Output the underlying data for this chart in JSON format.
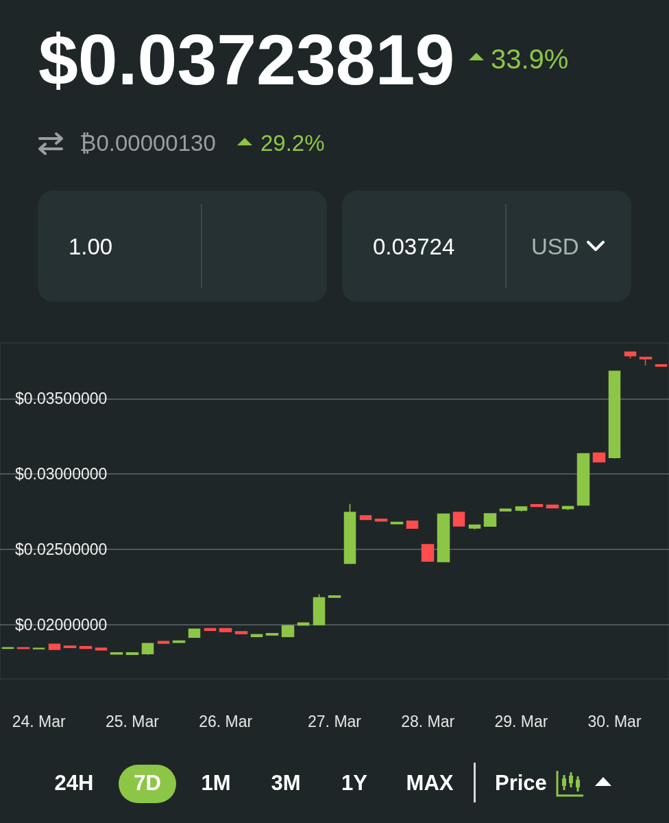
{
  "chart_data": {
    "type": "candlestick",
    "title": "$0.03723819",
    "annotations": [
      "33.9%",
      "₿0.00000130",
      "29.2%",
      "1.00",
      "0.03724",
      "USD",
      "24H",
      "7D",
      "1M",
      "3M",
      "1Y",
      "MAX",
      "Price"
    ],
    "categories": [
      null,
      null,
      "24. Mar",
      null,
      null,
      null,
      null,
      null,
      "25. Mar",
      null,
      null,
      null,
      null,
      null,
      "26. Mar",
      null,
      null,
      null,
      null,
      null,
      null,
      "27. Mar",
      null,
      null,
      null,
      null,
      null,
      "28. Mar",
      null,
      null,
      null,
      null,
      null,
      "29. Mar",
      null,
      null,
      null,
      null,
      null,
      "30. Mar",
      null,
      null,
      null
    ],
    "ohlc": [
      [
        0.01843,
        0.01848,
        0.01843,
        0.01848
      ],
      [
        0.01848,
        0.01848,
        0.01842,
        0.01842
      ],
      [
        0.0184,
        0.01844,
        0.0184,
        0.01844
      ],
      [
        0.01871,
        0.01871,
        0.01836,
        0.01836
      ],
      [
        0.01858,
        0.01858,
        0.01848,
        0.01848
      ],
      [
        0.01855,
        0.01855,
        0.01843,
        0.01843
      ],
      [
        0.01845,
        0.01845,
        0.01832,
        0.01832
      ],
      [
        0.01805,
        0.01814,
        0.01805,
        0.01814
      ],
      [
        0.01803,
        0.01814,
        0.01803,
        0.01814
      ],
      [
        0.01807,
        0.01876,
        0.018,
        0.01876
      ],
      [
        0.01889,
        0.01889,
        0.01877,
        0.01877
      ],
      [
        0.01882,
        0.01893,
        0.01882,
        0.01893
      ],
      [
        0.01916,
        0.01971,
        0.01916,
        0.01971
      ],
      [
        0.01974,
        0.01974,
        0.01962,
        0.01962
      ],
      [
        0.01974,
        0.01974,
        0.01954,
        0.01954
      ],
      [
        0.01954,
        0.01954,
        0.0194,
        0.0194
      ],
      [
        0.01921,
        0.01935,
        0.01921,
        0.01935
      ],
      [
        0.01931,
        0.01942,
        0.01931,
        0.01942
      ],
      [
        0.01921,
        0.01994,
        0.01921,
        0.01994
      ],
      [
        0.01997,
        0.02012,
        0.01997,
        0.02012
      ],
      [
        0.01999,
        0.02202,
        0.01999,
        0.02179
      ],
      [
        0.02182,
        0.02192,
        0.02182,
        0.02192
      ],
      [
        0.02407,
        0.02802,
        0.02407,
        0.02746
      ],
      [
        0.02723,
        0.02723,
        0.02698,
        0.02698
      ],
      [
        0.027,
        0.027,
        0.02688,
        0.02688
      ],
      [
        0.0267,
        0.0268,
        0.0267,
        0.0268
      ],
      [
        0.02688,
        0.02688,
        0.0264,
        0.0264
      ],
      [
        0.02532,
        0.02532,
        0.02422,
        0.02422
      ],
      [
        0.02418,
        0.02734,
        0.02418,
        0.02734
      ],
      [
        0.02746,
        0.02746,
        0.02655,
        0.02655
      ],
      [
        0.02641,
        0.02662,
        0.02632,
        0.02662
      ],
      [
        0.02654,
        0.02737,
        0.02654,
        0.02737
      ],
      [
        0.02755,
        0.02767,
        0.02755,
        0.02767
      ],
      [
        0.0276,
        0.02782,
        0.02752,
        0.02782
      ],
      [
        0.02797,
        0.02797,
        0.02785,
        0.02785
      ],
      [
        0.02794,
        0.02794,
        0.02776,
        0.02776
      ],
      [
        0.0277,
        0.02785,
        0.02761,
        0.02785
      ],
      [
        0.02794,
        0.03135,
        0.02794,
        0.03135
      ],
      [
        0.03139,
        0.03139,
        0.0308,
        0.0308
      ],
      [
        0.03109,
        0.03682,
        0.03103,
        0.03682
      ],
      [
        0.0381,
        0.0381,
        0.03767,
        0.03785
      ],
      [
        0.03774,
        0.03774,
        0.03721,
        0.03764
      ],
      [
        0.03726,
        0.03726,
        0.03715,
        0.03715
      ]
    ],
    "colors": [
      "#8dc647",
      "#ff4d4d",
      "#8dc647",
      "#ff4d4d",
      "#ff4d4d",
      "#ff4d4d",
      "#ff4d4d",
      "#8dc647",
      "#8dc647",
      "#8dc647",
      "#ff4d4d",
      "#8dc647",
      "#8dc647",
      "#ff4d4d",
      "#ff4d4d",
      "#ff4d4d",
      "#8dc647",
      "#8dc647",
      "#8dc647",
      "#8dc647",
      "#8dc647",
      "#8dc647",
      "#8dc647",
      "#ff4d4d",
      "#ff4d4d",
      "#8dc647",
      "#ff4d4d",
      "#ff4d4d",
      "#8dc647",
      "#ff4d4d",
      "#8dc647",
      "#8dc647",
      "#8dc647",
      "#8dc647",
      "#ff4d4d",
      "#ff4d4d",
      "#8dc647",
      "#8dc647",
      "#ff4d4d",
      "#8dc647",
      "#ff4d4d",
      "#ff4d4d",
      "#ff4d4d"
    ],
    "ylim": [
      0.0164,
      0.0387
    ],
    "yticks": [
      {
        "value": 0.02,
        "label": "$0.02000000"
      },
      {
        "value": 0.025,
        "label": "$0.02500000"
      },
      {
        "value": 0.03,
        "label": "$0.03000000"
      },
      {
        "value": 0.035,
        "label": "$0.03500000"
      }
    ],
    "grid": "y"
  }
}
